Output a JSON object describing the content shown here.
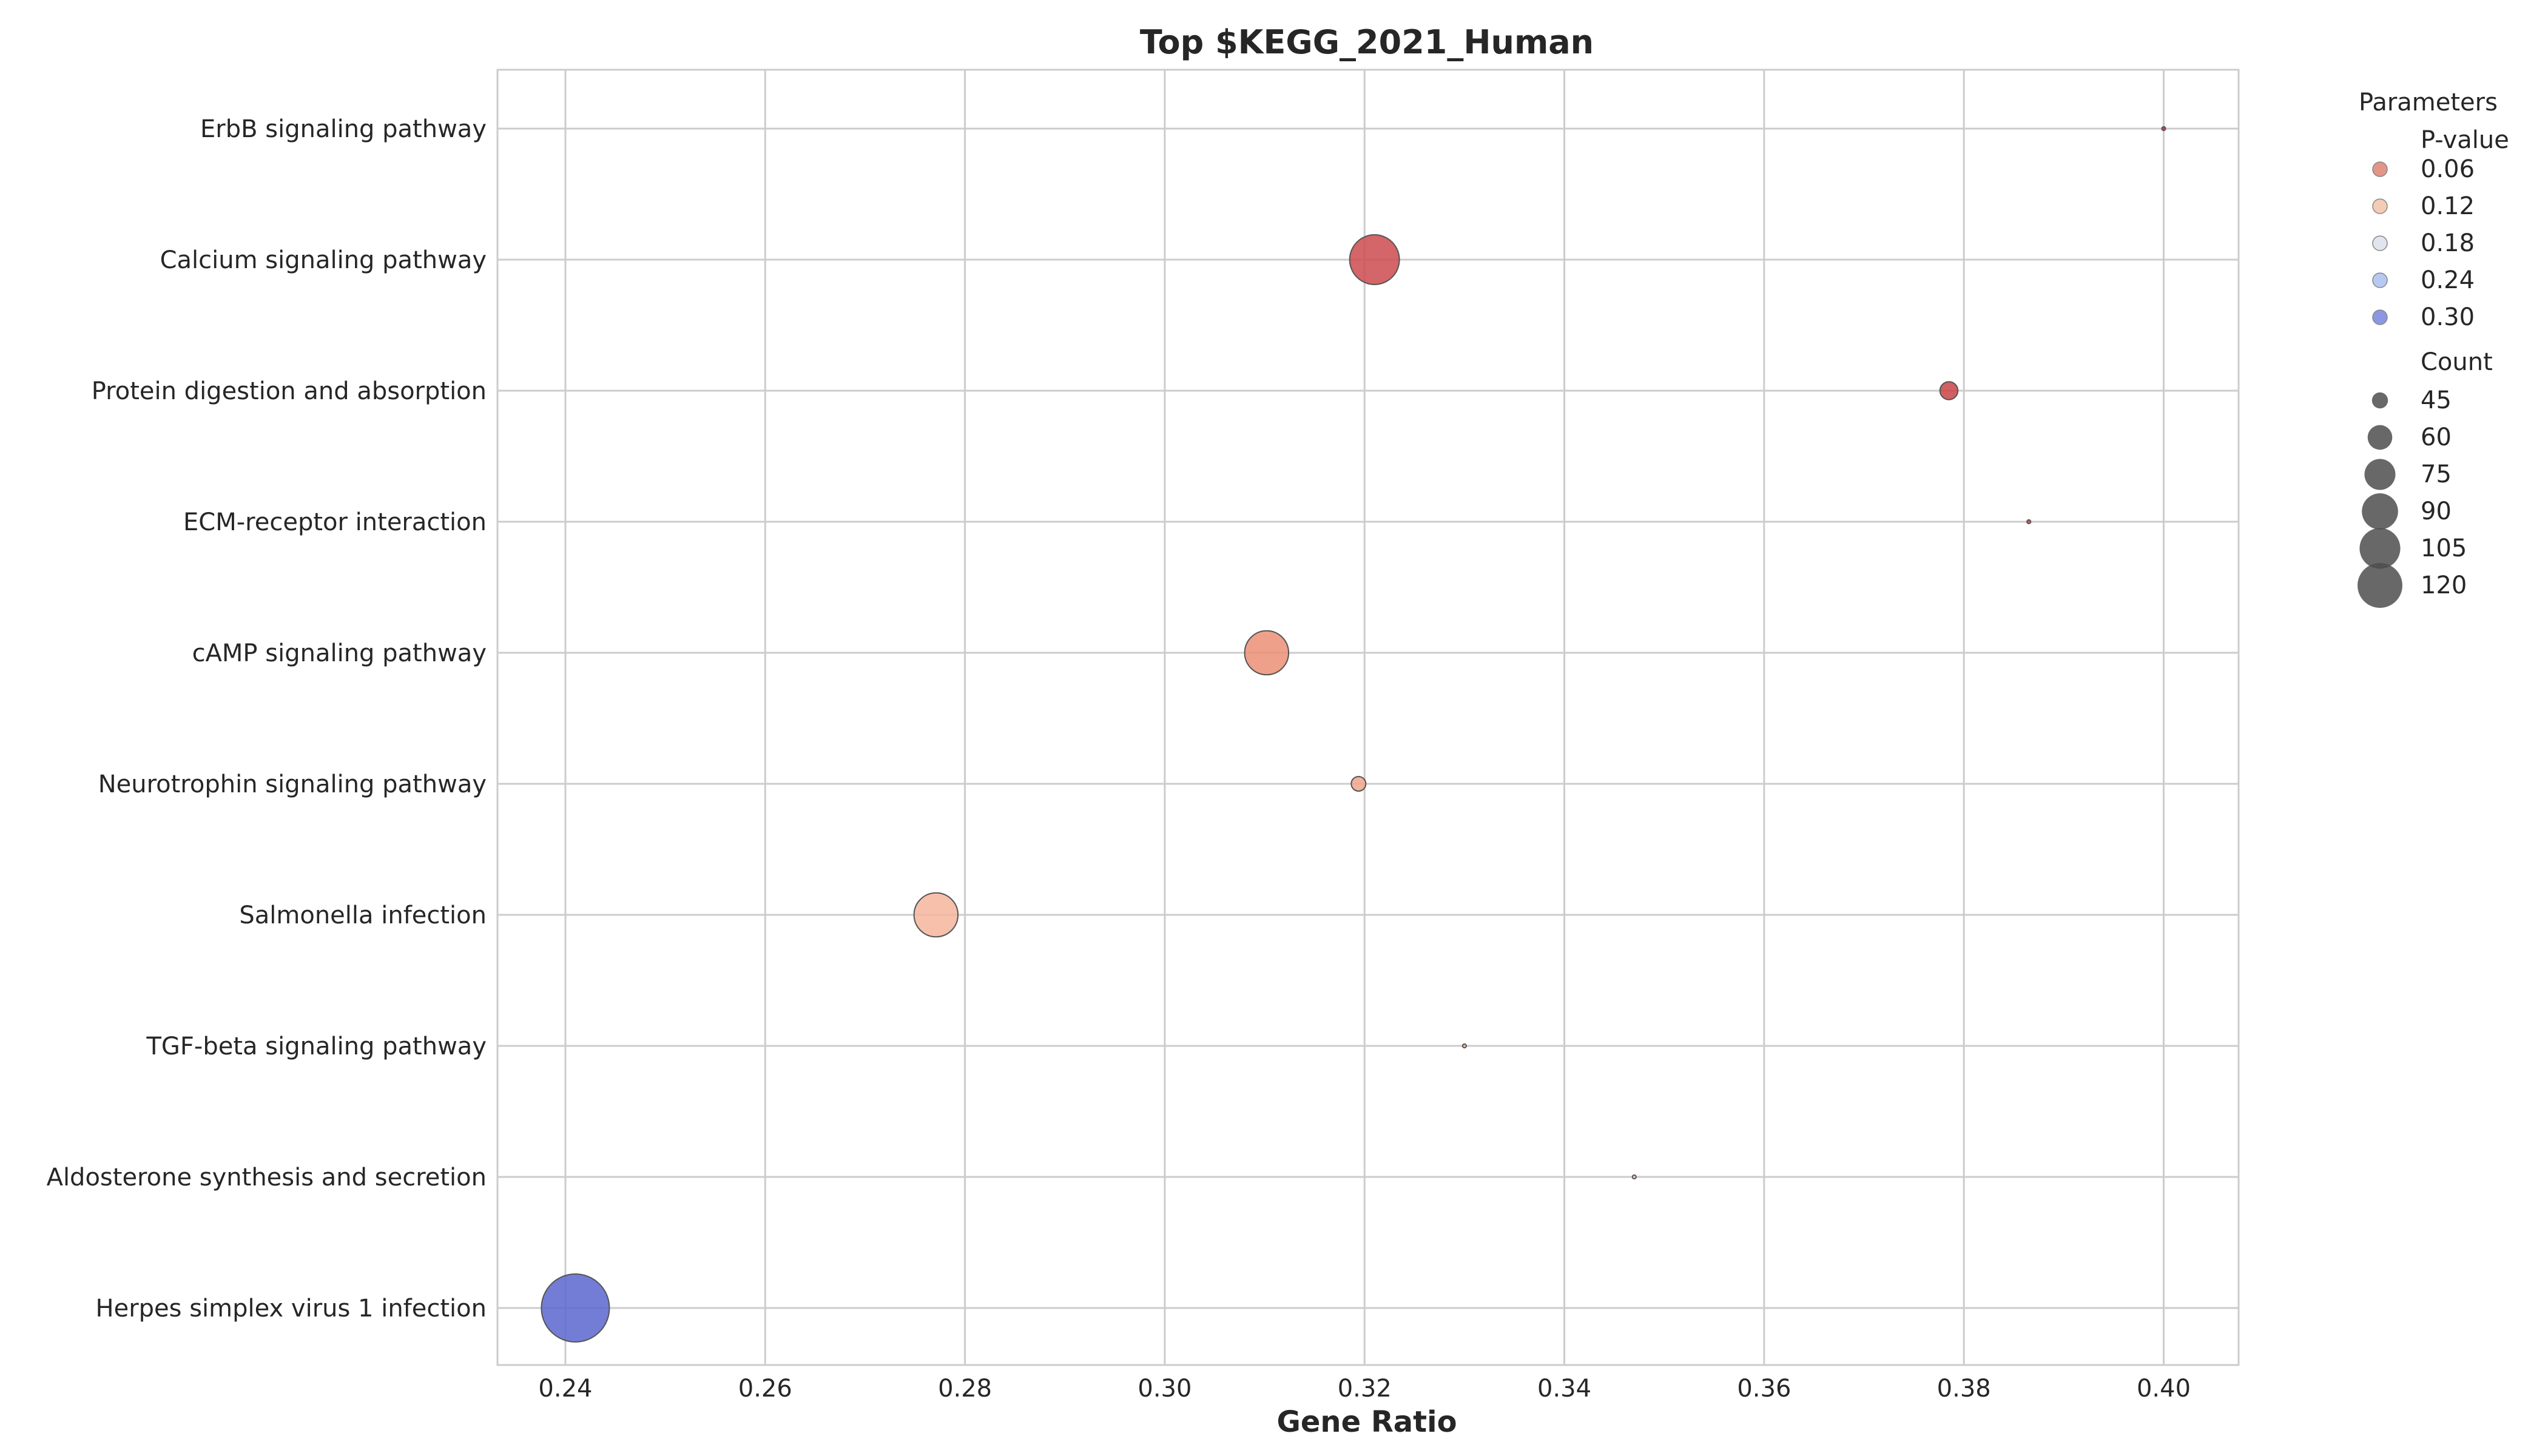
{
  "chart_data": {
    "type": "scatter",
    "title": "Top $KEGG_2021_Human",
    "xlabel": "Gene Ratio",
    "ylabel": "",
    "xlim": [
      0.2332,
      0.4075
    ],
    "xticks": [
      0.24,
      0.26,
      0.28,
      0.3,
      0.32,
      0.34,
      0.36,
      0.38,
      0.4
    ],
    "xtick_labels": [
      "0.24",
      "0.26",
      "0.28",
      "0.30",
      "0.32",
      "0.34",
      "0.36",
      "0.38",
      "0.40"
    ],
    "grid": true,
    "size_scale": {
      "min_count": 45,
      "max_count": 120,
      "min_radius": 20,
      "max_radius": 56
    },
    "categories": [
      "ErbB signaling pathway",
      "Calcium signaling pathway",
      "Protein digestion and absorption",
      "ECM-receptor interaction",
      "cAMP signaling pathway",
      "Neurotrophin signaling pathway",
      "Salmonella infection",
      "TGF-beta signaling pathway",
      "Aldosterone synthesis and secretion",
      "Herpes simplex virus 1 infection"
    ],
    "points": [
      {
        "term": "ErbB signaling pathway",
        "gene_ratio": 0.4,
        "p_value": 0.012,
        "count": 34,
        "color": "#c1273f"
      },
      {
        "term": "Calcium signaling pathway",
        "gene_ratio": 0.321,
        "p_value": 0.035,
        "count": 80,
        "color": "#cc4a4e"
      },
      {
        "term": "Protein digestion and absorption",
        "gene_ratio": 0.3785,
        "p_value": 0.03,
        "count": 40,
        "color": "#c94447"
      },
      {
        "term": "ECM-receptor interaction",
        "gene_ratio": 0.3865,
        "p_value": 0.03,
        "count": 34,
        "color": "#cf4b4b"
      },
      {
        "term": "cAMP signaling pathway",
        "gene_ratio": 0.3102,
        "p_value": 0.075,
        "count": 70,
        "color": "#ec8f75"
      },
      {
        "term": "Neurotrophin signaling pathway",
        "gene_ratio": 0.3194,
        "p_value": 0.085,
        "count": 38,
        "color": "#f1a589"
      },
      {
        "term": "Salmonella infection",
        "gene_ratio": 0.2771,
        "p_value": 0.095,
        "count": 70,
        "color": "#f5b59c"
      },
      {
        "term": "TGF-beta signaling pathway",
        "gene_ratio": 0.33,
        "p_value": 0.1,
        "count": 25,
        "color": "#f3b093"
      },
      {
        "term": "Aldosterone synthesis and secretion",
        "gene_ratio": 0.347,
        "p_value": 0.115,
        "count": 33,
        "color": "#f4c8b2"
      },
      {
        "term": "Herpes simplex virus 1 infection",
        "gene_ratio": 0.241,
        "p_value": 0.32,
        "count": 120,
        "color": "#5b66cf"
      }
    ],
    "legend": {
      "title": "Parameters",
      "placement": "right",
      "hue_title": "P-value",
      "hue_items": [
        {
          "label": "0.06",
          "color": "#e0897b"
        },
        {
          "label": "0.12",
          "color": "#f3c5ad"
        },
        {
          "label": "0.18",
          "color": "#dde2ec"
        },
        {
          "label": "0.24",
          "color": "#aec3ef"
        },
        {
          "label": "0.30",
          "color": "#7d8de0"
        }
      ],
      "size_title": "Count",
      "size_items": [
        {
          "label": "45",
          "count": 45
        },
        {
          "label": "60",
          "count": 60
        },
        {
          "label": "75",
          "count": 75
        },
        {
          "label": "90",
          "count": 90
        },
        {
          "label": "105",
          "count": 105
        },
        {
          "label": "120",
          "count": 120
        }
      ]
    }
  }
}
